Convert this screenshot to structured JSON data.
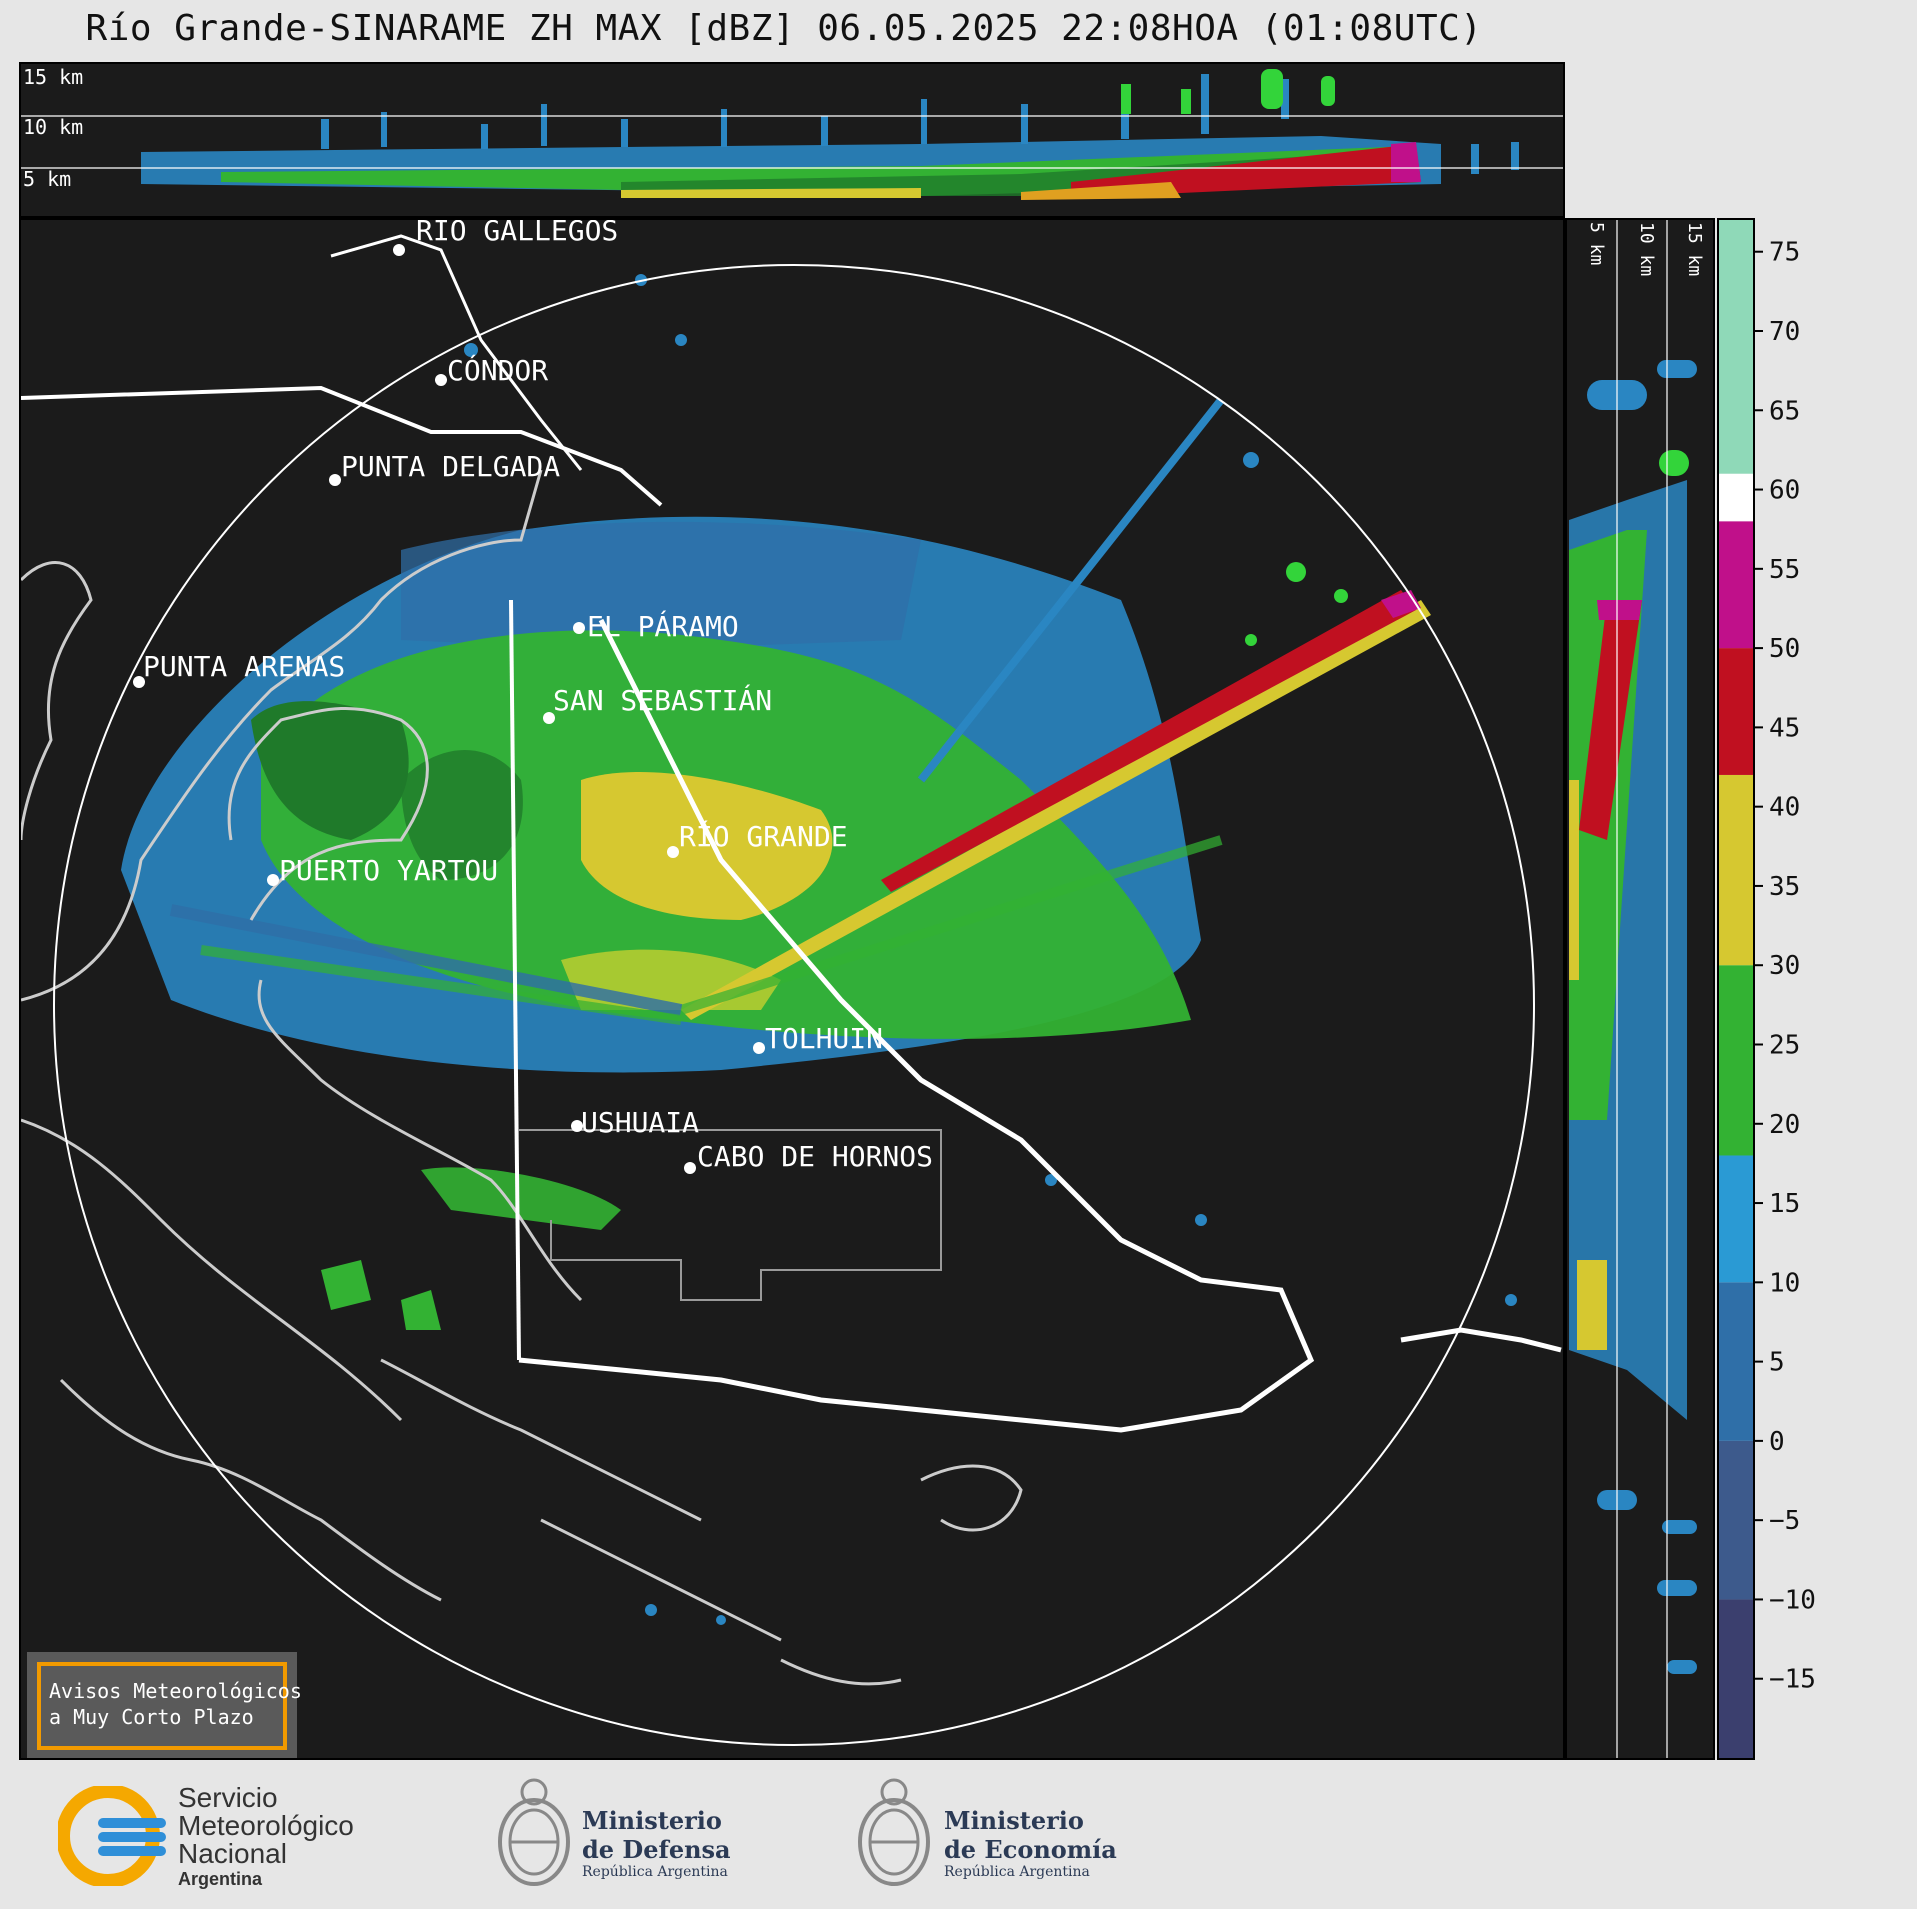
{
  "title": "Río Grande-SINARAME ZH MAX [dBZ] 06.05.2025 22:08HOA (01:08UTC)",
  "top_panel": {
    "height_labels": [
      "15 km",
      "10 km",
      "5 km"
    ]
  },
  "side_panel": {
    "height_labels": [
      "5 km",
      "10 km",
      "15 km"
    ]
  },
  "map": {
    "places": [
      {
        "name": "RÍO GALLEGOS"
      },
      {
        "name": "CÓNDOR"
      },
      {
        "name": "PUNTA DELGADA"
      },
      {
        "name": "EL PÁRAMO"
      },
      {
        "name": "PUNTA ARENAS"
      },
      {
        "name": "SAN SEBASTIÁN"
      },
      {
        "name": "RÍO GRANDE"
      },
      {
        "name": "PUERTO YARTOU"
      },
      {
        "name": "TOLHUIN"
      },
      {
        "name": "USHUAIA"
      },
      {
        "name": "CABO DE HORNOS"
      }
    ],
    "alert_box": {
      "line1": "Avisos Meteorológicos",
      "line2": "a Muy Corto Plazo",
      "border_color": "#f29a00"
    }
  },
  "colorbar": {
    "unit": "dBZ",
    "ticks": [
      "75",
      "70",
      "65",
      "60",
      "55",
      "50",
      "45",
      "40",
      "35",
      "30",
      "25",
      "20",
      "15",
      "10",
      "5",
      "0",
      "−5",
      "−10",
      "−15"
    ],
    "range": [
      -20,
      77
    ],
    "stops": [
      {
        "from": -20,
        "to": -10,
        "color": "#3b3f6e"
      },
      {
        "from": -10,
        "to": 0,
        "color": "#3d5a8c"
      },
      {
        "from": 0,
        "to": 10,
        "color": "#2f6fa8"
      },
      {
        "from": 10,
        "to": 18,
        "color": "#2a9ad4"
      },
      {
        "from": 18,
        "to": 30,
        "color": "#33b233"
      },
      {
        "from": 30,
        "to": 42,
        "color": "#d6c830"
      },
      {
        "from": 42,
        "to": 50,
        "color": "#c01020"
      },
      {
        "from": 50,
        "to": 58,
        "color": "#c0108a"
      },
      {
        "from": 58,
        "to": 61,
        "color": "#ffffff"
      },
      {
        "from": 61,
        "to": 77,
        "color": "#8fd9b8"
      }
    ]
  },
  "footer": {
    "smn": {
      "line1": "Servicio",
      "line2": "Meteorológico",
      "line3": "Nacional",
      "line4": "Argentina"
    },
    "defensa": {
      "line1": "Ministerio",
      "line2": "de Defensa",
      "line3": "República Argentina"
    },
    "economia": {
      "line1": "Ministerio",
      "line2": "de Economía",
      "line3": "República Argentina"
    }
  }
}
